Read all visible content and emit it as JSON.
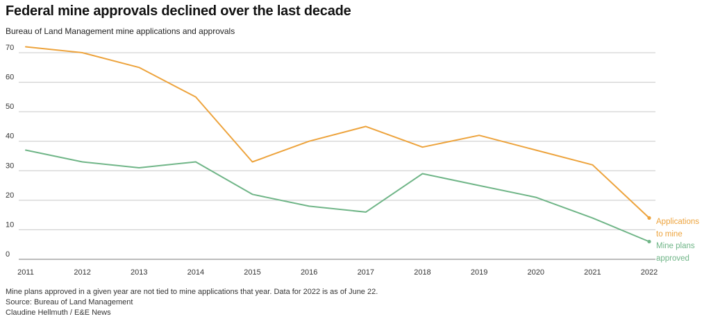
{
  "chart_data": {
    "type": "line",
    "title": "Federal mine approvals declined over the last decade",
    "subtitle": "Bureau of Land Management mine applications and approvals",
    "x": [
      "2011",
      "2012",
      "2013",
      "2014",
      "2015",
      "2016",
      "2017",
      "2018",
      "2019",
      "2020",
      "2021",
      "2022"
    ],
    "ylim": [
      0,
      70
    ],
    "yticks": [
      0,
      10,
      20,
      30,
      40,
      50,
      60,
      70
    ],
    "grid": true,
    "legend": "end-of-line labels, right",
    "series": [
      {
        "name": "Applications to mine",
        "label_lines": [
          "Applications",
          "to mine"
        ],
        "color": "#eda33c",
        "values": [
          72,
          70,
          65,
          55,
          33,
          40,
          45,
          38,
          42,
          37,
          32,
          14
        ]
      },
      {
        "name": "Mine plans approved",
        "label_lines": [
          "Mine plans",
          "approved"
        ],
        "color": "#6fb587",
        "values": [
          37,
          33,
          31,
          33,
          22,
          18,
          16,
          29,
          25,
          21,
          14,
          6
        ]
      }
    ]
  },
  "footer": {
    "note": "Mine plans approved in a given year are not tied to mine applications that year. Data for 2022 is as of June 22.",
    "source": "Source: Bureau of Land Management",
    "credit": "Claudine Hellmuth / E&E News"
  }
}
